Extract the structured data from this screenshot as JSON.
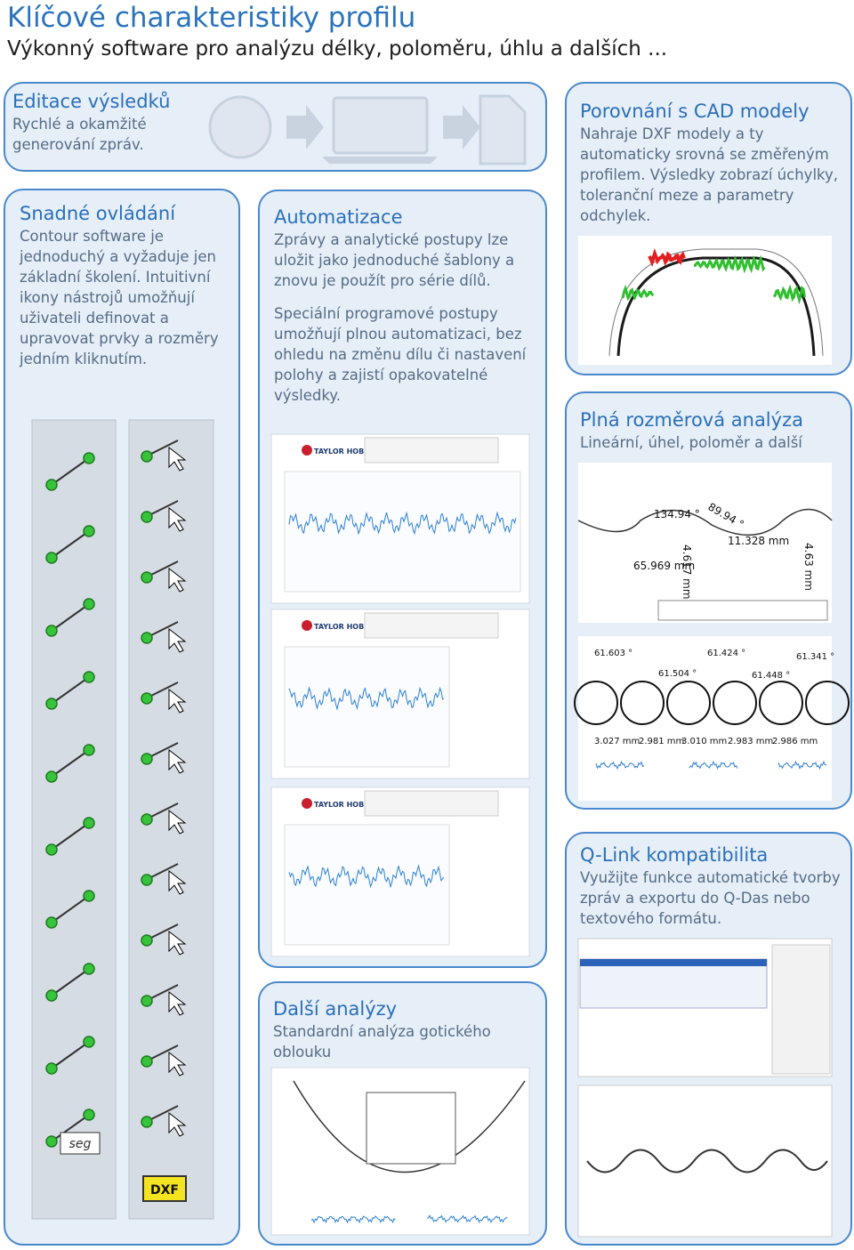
{
  "header": {
    "title": "Klíčové charakteristiky profilu",
    "subtitle": "Výkonný software pro analýzu délky, poloměru, úhlu a dalších ..."
  },
  "panels": [
    {
      "title": "Editace výsledků",
      "paragraphs": [
        "Rychlé a okamžité generování zpráv."
      ]
    },
    {
      "title": "Snadné ovládání",
      "paragraphs": [
        "Contour software je jednoduchý a vyžaduje jen základní školení. Intuitivní ikony nástrojů umožňují uživateli definovat a upravovat prvky a rozměry jedním kliknutím."
      ]
    },
    {
      "title": "Automatizace",
      "paragraphs": [
        "Zprávy a analytické postupy lze uložit jako jednoduché šablony a znovu je použít pro série dílů.",
        "Speciální programové postupy umožňují plnou automatizaci, bez ohledu na změnu dílu či nastavení polohy a zajistí opakovatelné výsledky."
      ]
    },
    {
      "title": "Porovnání s CAD modely",
      "paragraphs": [
        "Nahraje DXF modely a ty automaticky srovná se změřeným profilem. Výsledky zobrazí úchylky, toleranční meze a parametry odchylek."
      ]
    },
    {
      "title": "Plná rozměrová analýza",
      "paragraphs": [
        "Lineární, úhel, poloměr a další"
      ]
    },
    {
      "title": "Q-Link kompatibilita",
      "paragraphs": [
        "Využijte funkce automatické tvorby zpráv a exportu do Q-Das nebo textového formátu."
      ]
    },
    {
      "title": "Další analýzy",
      "paragraphs": [
        "Standardní analýza gotického oblouku"
      ]
    }
  ],
  "toolbar": {
    "labels": [
      "seg",
      "DXF"
    ]
  },
  "report_logo": "TAYLOR HOBSON",
  "dimension_figure": {
    "labels": [
      "134.94 °",
      "89.94 °",
      "4.617 mm",
      "11.328 mm",
      "65.969 mm",
      "4.63 mm"
    ]
  },
  "angle_figure": {
    "labels": [
      "61.603 °",
      "61.424 °",
      "61.341 °",
      "61.504 °",
      "61.448 °",
      "3.027 mm",
      "2.981 mm",
      "3.010 mm",
      "2.983 mm",
      "2.986 mm"
    ]
  }
}
